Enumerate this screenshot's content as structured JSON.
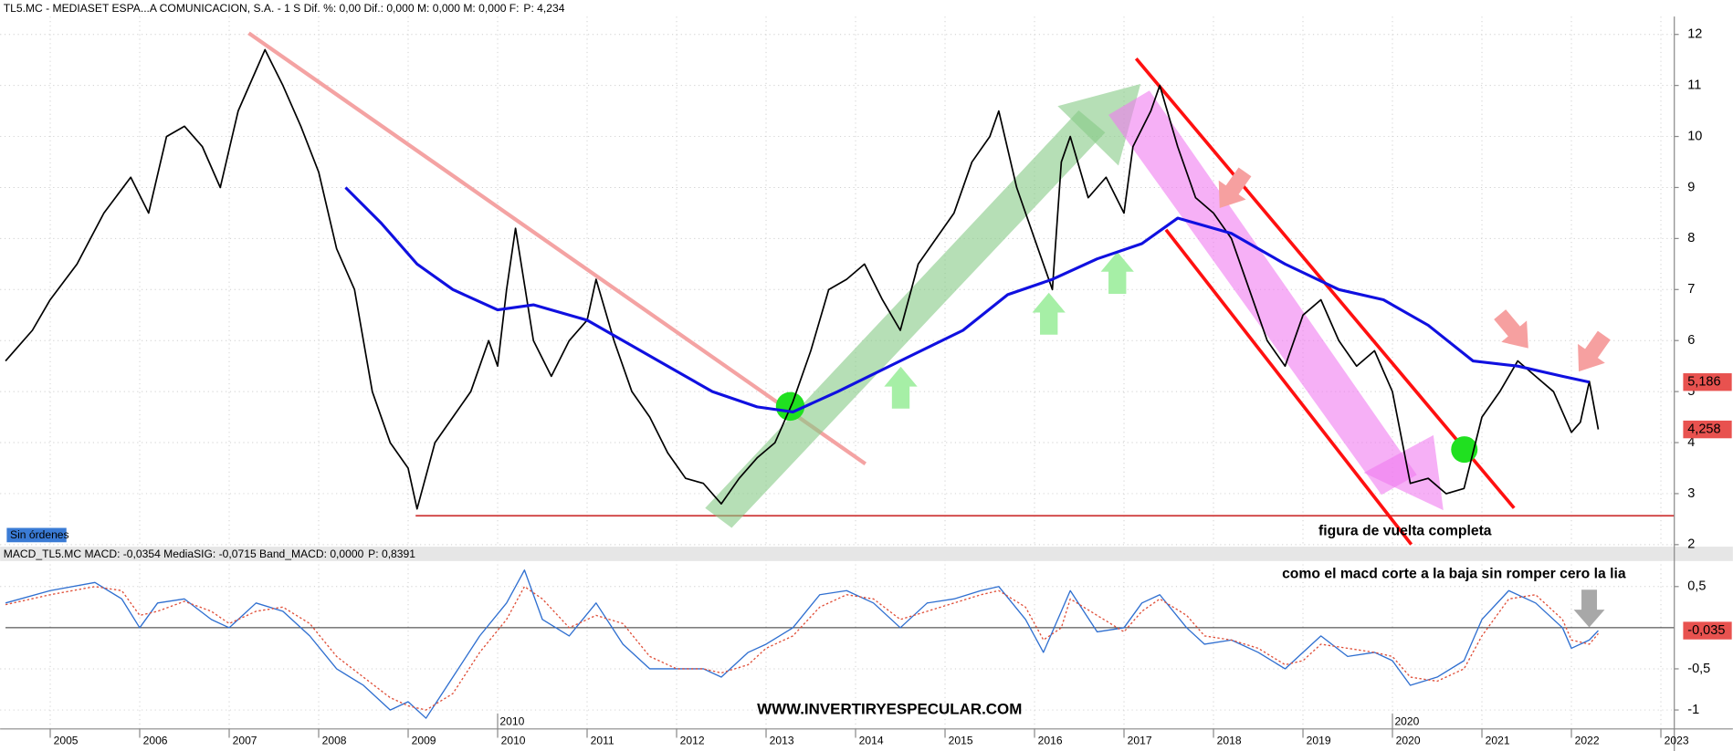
{
  "chart_data": [
    {
      "type": "line",
      "title": "TL5.MC - MEDIASET ESPA...A COMUNICACION, S.A. -  1 S  Dif. %: 0,00  Dif.: 0,000  M: 0,000  M: 0,000  F:",
      "price_label": "P: 4,234",
      "annotations": [
        "Sin órdenes",
        "figura de vuelta completa"
      ],
      "xlim": [
        2004.44,
        2023.15
      ],
      "ylim": [
        1.96,
        12.35
      ],
      "yticks": [
        2,
        3,
        4,
        5,
        6,
        7,
        8,
        9,
        10,
        11,
        12
      ],
      "grid": true,
      "series": [
        {
          "color": "#000000",
          "x": [
            2004.5,
            2004.8,
            2005.0,
            2005.3,
            2005.6,
            2005.9,
            2006.1,
            2006.3,
            2006.5,
            2006.7,
            2006.9,
            2007.1,
            2007.3,
            2007.4,
            2007.6,
            2007.8,
            2008.0,
            2008.2,
            2008.4,
            2008.6,
            2008.8,
            2009.0,
            2009.1,
            2009.3,
            2009.5,
            2009.7,
            2009.9,
            2010.0,
            2010.1,
            2010.2,
            2010.4,
            2010.6,
            2010.8,
            2011.0,
            2011.1,
            2011.3,
            2011.5,
            2011.7,
            2011.9,
            2012.1,
            2012.3,
            2012.5,
            2012.7,
            2012.9,
            2013.1,
            2013.3,
            2013.5,
            2013.7,
            2013.9,
            2014.1,
            2014.3,
            2014.5,
            2014.7,
            2014.9,
            2015.1,
            2015.3,
            2015.5,
            2015.6,
            2015.8,
            2016.0,
            2016.2,
            2016.3,
            2016.4,
            2016.6,
            2016.8,
            2017.0,
            2017.1,
            2017.3,
            2017.4,
            2017.6,
            2017.8,
            2018.0,
            2018.2,
            2018.4,
            2018.6,
            2018.8,
            2019.0,
            2019.2,
            2019.4,
            2019.6,
            2019.8,
            2020.0,
            2020.2,
            2020.4,
            2020.6,
            2020.8,
            2021.0,
            2021.2,
            2021.4,
            2021.6,
            2021.8,
            2022.0,
            2022.1,
            2022.2,
            2022.3
          ],
          "values": [
            5.6,
            6.2,
            6.8,
            7.5,
            8.5,
            9.2,
            8.5,
            10.0,
            10.2,
            9.8,
            9.0,
            10.5,
            11.3,
            11.7,
            11.0,
            10.2,
            9.3,
            7.8,
            7.0,
            5.0,
            4.0,
            3.5,
            2.7,
            4.0,
            4.5,
            5.0,
            6.0,
            5.5,
            7.0,
            8.2,
            6.0,
            5.3,
            6.0,
            6.4,
            7.2,
            6.0,
            5.0,
            4.5,
            3.8,
            3.3,
            3.2,
            2.8,
            3.3,
            3.7,
            4.0,
            4.8,
            5.8,
            7.0,
            7.2,
            7.5,
            6.8,
            6.2,
            7.5,
            8.0,
            8.5,
            9.5,
            10.0,
            10.5,
            9.0,
            8.0,
            7.0,
            9.5,
            10.0,
            8.8,
            9.2,
            8.5,
            9.8,
            10.5,
            11.0,
            9.8,
            8.8,
            8.5,
            8.0,
            7.0,
            6.0,
            5.5,
            6.5,
            6.8,
            6.0,
            5.5,
            5.8,
            5.0,
            3.2,
            3.3,
            3.0,
            3.1,
            4.5,
            5.0,
            5.6,
            5.3,
            5.0,
            4.2,
            4.4,
            5.2,
            4.258
          ],
          "last_value_label": "4,258"
        },
        {
          "color": "#1010e0",
          "x": [
            2008.3,
            2008.7,
            2009.1,
            2009.5,
            2010.0,
            2010.4,
            2011.0,
            2011.4,
            2011.9,
            2012.4,
            2012.9,
            2013.3,
            2013.8,
            2014.5,
            2015.2,
            2015.7,
            2016.2,
            2016.7,
            2017.2,
            2017.6,
            2018.2,
            2018.8,
            2019.4,
            2019.9,
            2020.4,
            2020.9,
            2021.4,
            2021.9,
            2022.2
          ],
          "values": [
            9.0,
            8.3,
            7.5,
            7.0,
            6.6,
            6.7,
            6.4,
            6.0,
            5.5,
            5.0,
            4.7,
            4.6,
            5.0,
            5.6,
            6.2,
            6.9,
            7.2,
            7.6,
            7.9,
            8.4,
            8.1,
            7.5,
            7.0,
            6.8,
            6.3,
            5.6,
            5.5,
            5.3,
            5.186
          ],
          "last_value_label": "5,186"
        }
      ]
    },
    {
      "type": "line",
      "title": "MACD_TL5.MC  MACD: -0,0354  MediaSIG: -0,0715  Band_MACD: 0,0000",
      "price_label": "P: 0,8391",
      "annotations": [
        "como el macd corte a la baja sin romper cero la lia",
        "WWW.INVERTIRYESPECULAR.COM"
      ],
      "xlim": [
        2004.44,
        2023.15
      ],
      "ylim": [
        -1.23,
        0.81
      ],
      "yticks": [
        {
          "value": 0.5,
          "label": "0,5"
        },
        {
          "value": -0.5,
          "label": "-0,5"
        },
        -1
      ],
      "xticks": [
        2005,
        2006,
        2007,
        2008,
        2009,
        2010,
        2011,
        2012,
        2013,
        2014,
        2015,
        2016,
        2017,
        2018,
        2019,
        2020,
        2021,
        2022,
        2023
      ],
      "decade_labels": [
        2010,
        2020
      ],
      "reference_line": 0,
      "grid": true,
      "x": [
        2004.5,
        2005.0,
        2005.5,
        2005.8,
        2006.0,
        2006.2,
        2006.5,
        2006.8,
        2007.0,
        2007.3,
        2007.6,
        2007.9,
        2008.2,
        2008.5,
        2008.8,
        2009.0,
        2009.2,
        2009.5,
        2009.8,
        2010.1,
        2010.3,
        2010.5,
        2010.8,
        2011.1,
        2011.4,
        2011.7,
        2012.0,
        2012.3,
        2012.5,
        2012.8,
        2013.0,
        2013.3,
        2013.6,
        2013.9,
        2014.2,
        2014.5,
        2014.8,
        2015.1,
        2015.4,
        2015.6,
        2015.9,
        2016.1,
        2016.3,
        2016.4,
        2016.7,
        2017.0,
        2017.2,
        2017.4,
        2017.7,
        2017.9,
        2018.2,
        2018.5,
        2018.8,
        2019.0,
        2019.2,
        2019.5,
        2019.8,
        2020.0,
        2020.2,
        2020.5,
        2020.8,
        2021.0,
        2021.3,
        2021.6,
        2021.9,
        2022.0,
        2022.2,
        2022.3
      ],
      "series": [
        {
          "color": "#2f6fd0",
          "dash": false,
          "values": [
            0.3,
            0.45,
            0.55,
            0.35,
            0.0,
            0.3,
            0.35,
            0.1,
            0.0,
            0.3,
            0.2,
            -0.1,
            -0.5,
            -0.7,
            -1.0,
            -0.9,
            -1.1,
            -0.6,
            -0.1,
            0.3,
            0.7,
            0.1,
            -0.1,
            0.3,
            -0.2,
            -0.5,
            -0.5,
            -0.5,
            -0.6,
            -0.3,
            -0.2,
            0.0,
            0.4,
            0.45,
            0.3,
            0.0,
            0.3,
            0.35,
            0.45,
            0.5,
            0.1,
            -0.3,
            0.2,
            0.45,
            -0.05,
            0.0,
            0.3,
            0.4,
            0.0,
            -0.2,
            -0.15,
            -0.3,
            -0.5,
            -0.3,
            -0.1,
            -0.35,
            -0.3,
            -0.4,
            -0.7,
            -0.6,
            -0.4,
            0.1,
            0.45,
            0.3,
            0.0,
            -0.25,
            -0.15,
            -0.0354
          ],
          "last_value_label": "-0,035"
        },
        {
          "color": "#e0503a",
          "dash": true,
          "values": [
            0.28,
            0.4,
            0.5,
            0.45,
            0.15,
            0.2,
            0.32,
            0.2,
            0.05,
            0.2,
            0.25,
            0.05,
            -0.35,
            -0.6,
            -0.85,
            -0.95,
            -1.0,
            -0.8,
            -0.3,
            0.1,
            0.5,
            0.35,
            0.0,
            0.15,
            0.05,
            -0.35,
            -0.5,
            -0.5,
            -0.55,
            -0.45,
            -0.25,
            -0.1,
            0.25,
            0.4,
            0.35,
            0.1,
            0.2,
            0.3,
            0.4,
            0.45,
            0.25,
            -0.15,
            0.0,
            0.35,
            0.15,
            -0.05,
            0.2,
            0.35,
            0.15,
            -0.1,
            -0.15,
            -0.25,
            -0.45,
            -0.4,
            -0.2,
            -0.25,
            -0.3,
            -0.35,
            -0.6,
            -0.65,
            -0.5,
            -0.1,
            0.35,
            0.4,
            0.1,
            -0.15,
            -0.2,
            -0.0715
          ]
        }
      ]
    }
  ]
}
